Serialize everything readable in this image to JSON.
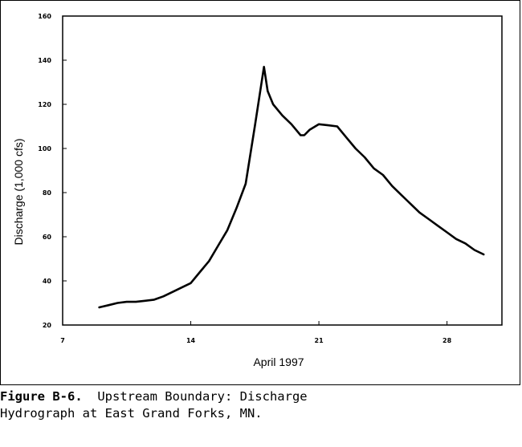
{
  "chart_data": {
    "type": "line",
    "xlabel": "April 1997",
    "ylabel": "Discharge (1,000 cfs)",
    "xlim": [
      7,
      31
    ],
    "ylim": [
      20,
      160
    ],
    "x_ticks": [
      7,
      14,
      21,
      28
    ],
    "y_ticks": [
      20,
      40,
      60,
      80,
      100,
      120,
      140,
      160
    ],
    "grid": false,
    "series": [
      {
        "x": [
          9,
          9.5,
          10,
          10.5,
          11,
          11.5,
          12,
          12.5,
          13,
          13.5,
          14,
          14.5,
          15,
          15.5,
          16,
          16.5,
          17,
          17.5,
          18,
          18.2,
          18.5,
          19,
          19.5,
          20,
          20.2,
          20.5,
          21,
          21.5,
          22,
          22.5,
          23,
          23.5,
          24,
          24.5,
          25,
          25.5,
          26,
          26.5,
          27,
          27.5,
          28,
          28.5,
          29,
          29.5,
          30
        ],
        "y": [
          28,
          29,
          30,
          30.5,
          30.5,
          31,
          31.5,
          33,
          35,
          37,
          39,
          44,
          49,
          56,
          63,
          73,
          84,
          110,
          137,
          126,
          120,
          115,
          111,
          106,
          106,
          108.5,
          111,
          110.5,
          110,
          105,
          100,
          96,
          91,
          88,
          83,
          79,
          75,
          71,
          68,
          65,
          62,
          59,
          57,
          54,
          52
        ]
      }
    ]
  },
  "caption": {
    "label": "Figure B-6.",
    "line1": "  Upstream Boundary: Discharge",
    "line2": "Hydrograph at East Grand Forks, MN."
  }
}
